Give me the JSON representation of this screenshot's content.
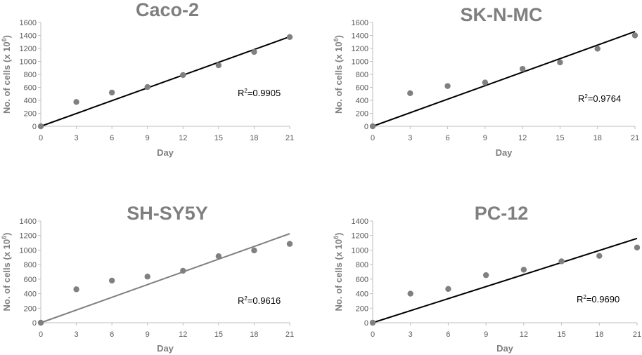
{
  "colors": {
    "point": "#808080",
    "trend_dark": "#000000",
    "trend_gray": "#808080",
    "title": "#7f7f7f",
    "tick": "#595959",
    "axis": "#bfbfbf"
  },
  "chart_data": [
    {
      "type": "scatter",
      "title": "Caco-2",
      "xlabel": "Day",
      "ylabel": "No. of cells (x 10",
      "ylabel_sup": "6",
      "ylabel_close": ")",
      "x": [
        0,
        3,
        6,
        9,
        12,
        15,
        18,
        21
      ],
      "y": [
        0,
        375,
        520,
        605,
        790,
        940,
        1145,
        1375
      ],
      "xticks": [
        0,
        3,
        6,
        9,
        12,
        15,
        18,
        21
      ],
      "yticks": [
        0,
        200,
        400,
        600,
        800,
        1000,
        1200,
        1400,
        1600
      ],
      "xlim": [
        0,
        21
      ],
      "ylim": [
        0,
        1600
      ],
      "trendline": {
        "x": [
          0,
          21
        ],
        "y": [
          0,
          1380
        ],
        "color": "#000000"
      },
      "r2_prefix": "R",
      "r2_sup": "2",
      "r2_value": "=0.9905"
    },
    {
      "type": "scatter",
      "title": "SK-N-MC",
      "xlabel": "Day",
      "ylabel": "No. of cells (x 10",
      "ylabel_sup": "6",
      "ylabel_close": ")",
      "x": [
        0,
        3,
        6,
        9,
        12,
        15,
        18,
        21
      ],
      "y": [
        0,
        510,
        620,
        675,
        885,
        985,
        1195,
        1400
      ],
      "xticks": [
        0,
        3,
        6,
        9,
        12,
        15,
        18,
        21
      ],
      "yticks": [
        0,
        200,
        400,
        600,
        800,
        1000,
        1200,
        1400,
        1600
      ],
      "xlim": [
        0,
        21
      ],
      "ylim": [
        0,
        1600
      ],
      "trendline": {
        "x": [
          0,
          21
        ],
        "y": [
          0,
          1460
        ],
        "color": "#000000"
      },
      "r2_prefix": "R",
      "r2_sup": "2",
      "r2_value": "=0.9764"
    },
    {
      "type": "scatter",
      "title": "SH-SY5Y",
      "xlabel": "Day",
      "ylabel": "No. of cells (x 10",
      "ylabel_sup": "6",
      "ylabel_close": ")",
      "x": [
        0,
        3,
        6,
        9,
        12,
        15,
        18,
        21
      ],
      "y": [
        0,
        460,
        580,
        635,
        715,
        915,
        995,
        1085
      ],
      "xticks": [
        0,
        3,
        6,
        9,
        12,
        15,
        18,
        21
      ],
      "yticks": [
        0,
        200,
        400,
        600,
        800,
        1000,
        1200,
        1400
      ],
      "xlim": [
        0,
        21
      ],
      "ylim": [
        0,
        1400
      ],
      "trendline": {
        "x": [
          0,
          21
        ],
        "y": [
          0,
          1225
        ],
        "color": "#808080"
      },
      "r2_prefix": "R",
      "r2_sup": "2",
      "r2_value": "=0.9616"
    },
    {
      "type": "scatter",
      "title": "PC-12",
      "xlabel": "Day",
      "ylabel": "No. of cells (x 10",
      "ylabel_sup": "6",
      "ylabel_close": ")",
      "x": [
        0,
        3,
        6,
        9,
        12,
        15,
        18,
        21
      ],
      "y": [
        0,
        400,
        465,
        655,
        730,
        845,
        920,
        1035
      ],
      "xticks": [
        0,
        3,
        6,
        9,
        12,
        15,
        18,
        21
      ],
      "yticks": [
        0,
        200,
        400,
        600,
        800,
        1000,
        1200,
        1400
      ],
      "xlim": [
        0,
        21
      ],
      "ylim": [
        0,
        1400
      ],
      "trendline": {
        "x": [
          0,
          21
        ],
        "y": [
          0,
          1160
        ],
        "color": "#000000"
      },
      "r2_prefix": "R",
      "r2_sup": "2",
      "r2_value": "=0.9690"
    }
  ]
}
